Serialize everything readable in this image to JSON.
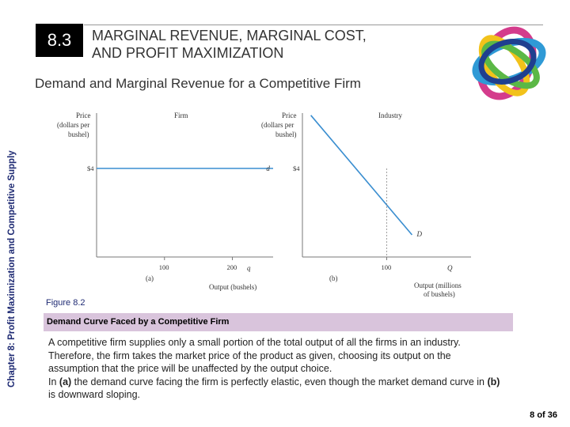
{
  "header": {
    "section_number": "8.3",
    "title_line1": "MARGINAL REVENUE, MARGINAL COST,",
    "title_line2": "AND PROFIT MAXIMIZATION"
  },
  "subtitle": "Demand and Marginal Revenue for a Competitive Firm",
  "sidebar_text": "Chapter 8: Profit Maximization and Competitive Supply",
  "figure": {
    "label": "Figure 8.2",
    "caption": "Demand Curve Faced by a Competitive Firm"
  },
  "body": {
    "paragraph1": "A competitive firm supplies only a small portion of the total output of all the firms in an industry. Therefore, the firm takes the market price of the product as given, choosing its output on the assumption that the price will be unaffected by the output choice.",
    "paragraph2_pre_a": "In ",
    "paragraph2_a": "(a)",
    "paragraph2_mid": " the demand curve facing the firm is perfectly elastic, even though the market demand curve in ",
    "paragraph2_b": "(b)",
    "paragraph2_post": " is downward sloping."
  },
  "page_number": "8 of 36",
  "chart_data": [
    {
      "type": "line",
      "panel_label": "(a)",
      "title": "Firm",
      "ylabel_line1": "Price",
      "ylabel_line2": "(dollars per",
      "ylabel_line3": "bushel)",
      "xlabel": "Output (bushels)",
      "x_axis_symbol": "q",
      "x_ticks": [
        100,
        200
      ],
      "y_ticks": [
        4
      ],
      "y_tick_label": "$4",
      "xlim": [
        0,
        260
      ],
      "ylim": [
        0,
        6.5
      ],
      "series": [
        {
          "name": "d",
          "x": [
            0,
            260
          ],
          "y": [
            4,
            4
          ]
        }
      ]
    },
    {
      "type": "line",
      "panel_label": "(b)",
      "title": "Industry",
      "ylabel_line1": "Price",
      "ylabel_line2": "(dollars per",
      "ylabel_line3": "bushel)",
      "xlabel_line1": "Output (millions",
      "xlabel_line2": "of bushels)",
      "x_axis_symbol": "Q",
      "x_ticks": [
        100
      ],
      "y_ticks": [
        4
      ],
      "y_tick_label": "$4",
      "xlim": [
        0,
        200
      ],
      "ylim": [
        0,
        6.5
      ],
      "series": [
        {
          "name": "D",
          "x": [
            10,
            130
          ],
          "y": [
            6.4,
            1.0
          ]
        }
      ],
      "reference_point": {
        "x": 100,
        "y": 4
      }
    }
  ]
}
